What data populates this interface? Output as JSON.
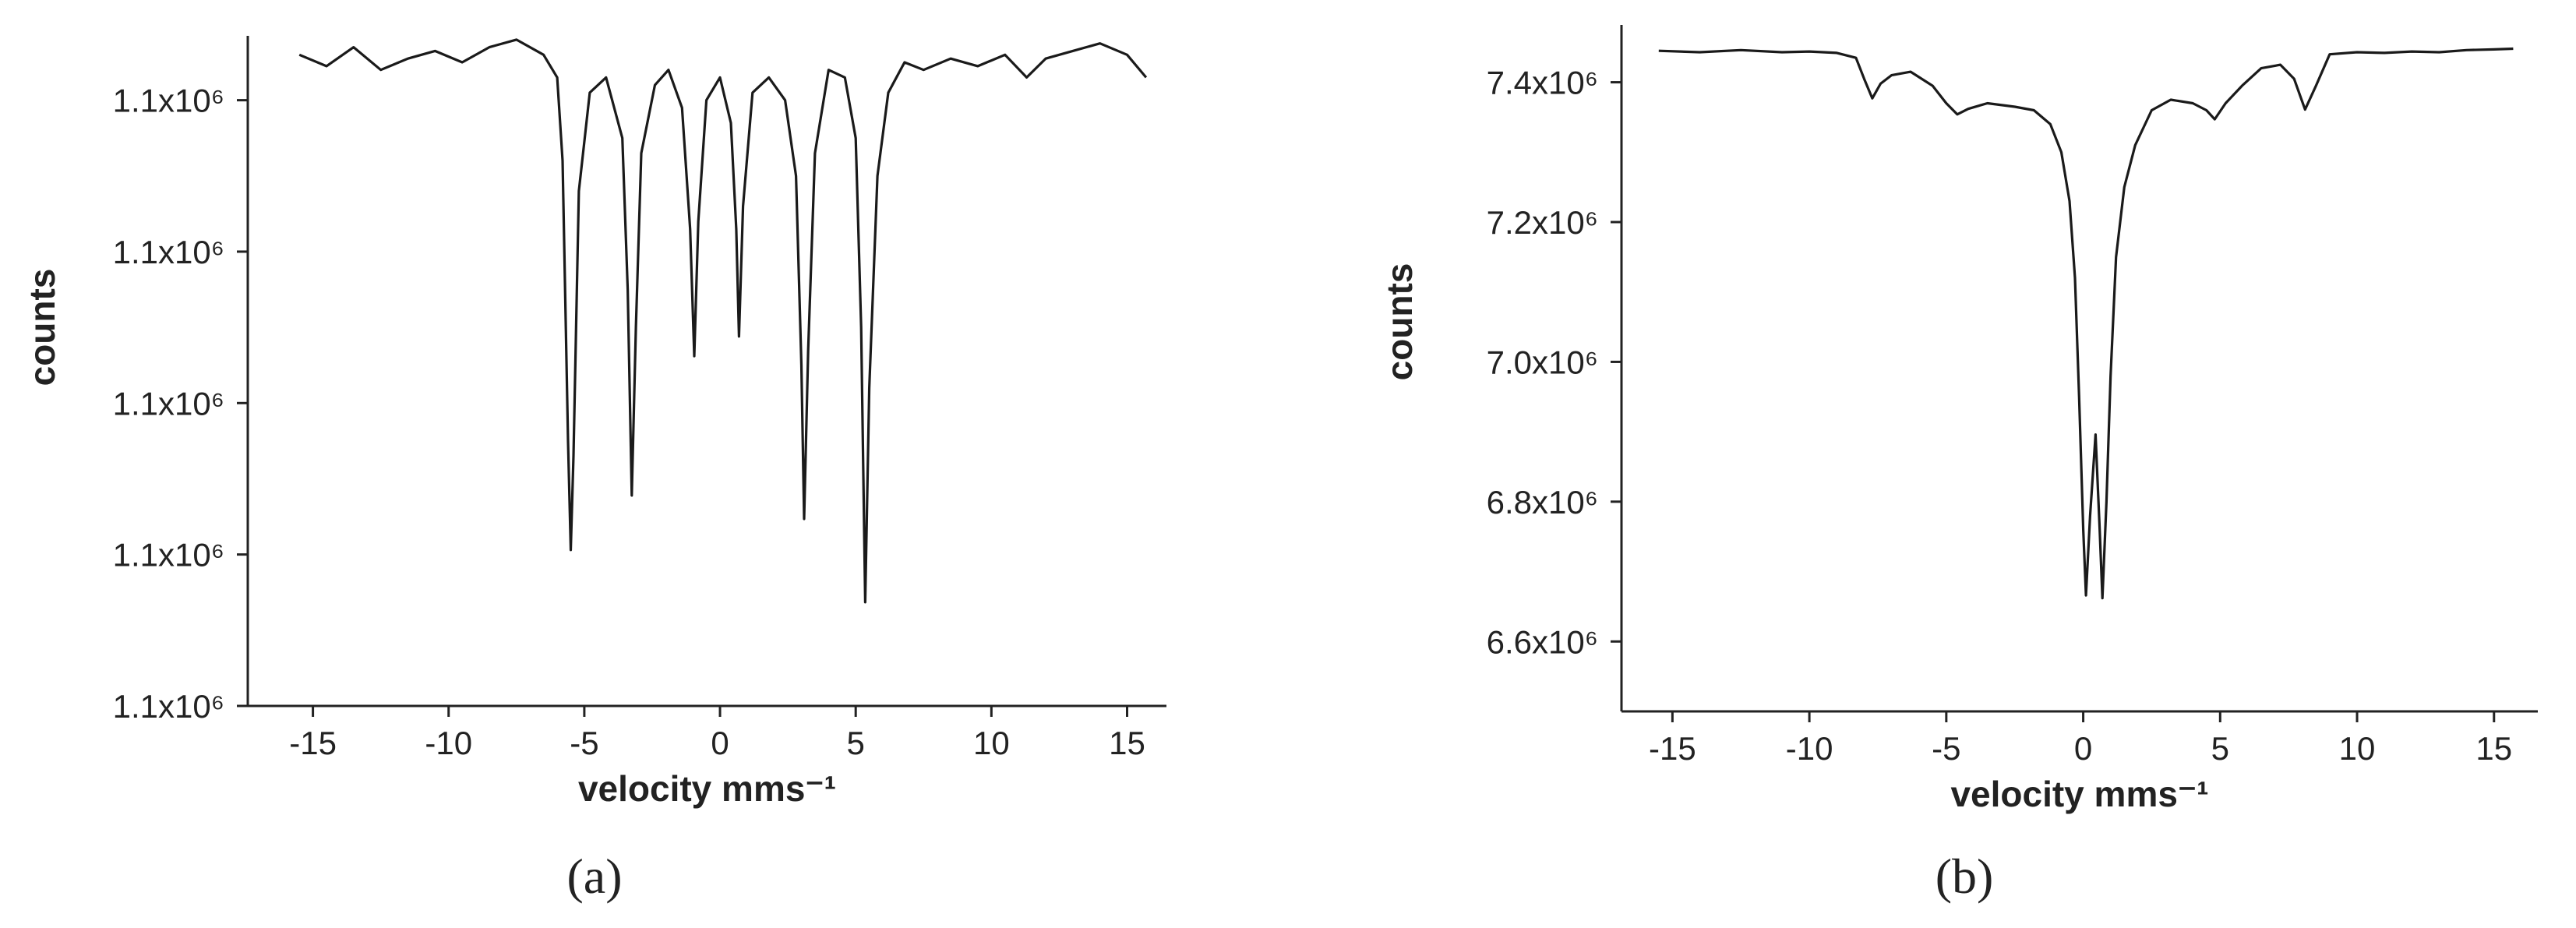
{
  "chart_data": [
    {
      "type": "line",
      "caption": "(a)",
      "xlabel": "velocity mms⁻¹",
      "ylabel": "counts",
      "color": "#1a1a1a",
      "xlim": [
        -17.4,
        16.45
      ],
      "xticks": [
        -15,
        -10,
        -5,
        0,
        5,
        10,
        15
      ],
      "ylim": [
        1096000,
        1104850
      ],
      "yticks": [
        {
          "value": 1096000,
          "label": "1.1x10⁶"
        },
        {
          "value": 1098000,
          "label": "1.1x10⁶"
        },
        {
          "value": 1100000,
          "label": "1.1x10⁶"
        },
        {
          "value": 1102000,
          "label": "1.1x10⁶"
        },
        {
          "value": 1104000,
          "label": "1.1x10⁶"
        }
      ],
      "x": [
        -15.5,
        -14.5,
        -13.5,
        -12.5,
        -11.5,
        -10.5,
        -9.5,
        -8.5,
        -7.5,
        -6.5,
        -6.0,
        -5.8,
        -5.6,
        -5.5,
        -5.4,
        -5.2,
        -4.8,
        -4.2,
        -3.6,
        -3.4,
        -3.25,
        -3.1,
        -2.9,
        -2.4,
        -1.9,
        -1.4,
        -1.1,
        -0.95,
        -0.8,
        -0.5,
        0,
        0.4,
        0.6,
        0.7,
        0.85,
        1.2,
        1.8,
        2.4,
        2.8,
        3.0,
        3.1,
        3.25,
        3.5,
        4.0,
        4.6,
        5.0,
        5.2,
        5.35,
        5.5,
        5.8,
        6.2,
        6.8,
        7.5,
        8.5,
        9.5,
        10.5,
        11.3,
        12,
        13,
        14,
        15,
        15.7
      ],
      "values": [
        1104600,
        1104450,
        1104700,
        1104400,
        1104550,
        1104650,
        1104500,
        1104700,
        1104800,
        1104600,
        1104300,
        1103200,
        1099500,
        1098060,
        1099300,
        1102800,
        1104100,
        1104300,
        1103500,
        1101500,
        1098780,
        1101000,
        1103300,
        1104200,
        1104400,
        1103900,
        1102300,
        1100620,
        1102400,
        1104000,
        1104300,
        1103700,
        1102300,
        1100880,
        1102600,
        1104100,
        1104300,
        1104000,
        1103000,
        1100500,
        1098470,
        1100700,
        1103300,
        1104400,
        1104300,
        1103500,
        1101000,
        1097370,
        1100200,
        1103000,
        1104100,
        1104500,
        1104400,
        1104550,
        1104450,
        1104600,
        1104300,
        1104550,
        1104650,
        1104750,
        1104600,
        1104300
      ]
    },
    {
      "type": "line",
      "caption": "(b)",
      "xlabel": "velocity mms⁻¹",
      "ylabel": "counts",
      "color": "#1a1a1a",
      "xlim": [
        -16.86,
        16.6
      ],
      "xticks": [
        -15,
        -10,
        -5,
        0,
        5,
        10,
        15
      ],
      "ylim": [
        6500000,
        7482000
      ],
      "yticks": [
        {
          "value": 6600000,
          "label": "6.6x10⁶"
        },
        {
          "value": 6800000,
          "label": "6.8x10⁶"
        },
        {
          "value": 7000000,
          "label": "7.0x10⁶"
        },
        {
          "value": 7200000,
          "label": "7.2x10⁶"
        },
        {
          "value": 7400000,
          "label": "7.4x10⁶"
        }
      ],
      "x": [
        -15.5,
        -14,
        -12.5,
        -11,
        -10,
        -9,
        -8.3,
        -8,
        -7.7,
        -7.4,
        -7,
        -6.3,
        -5.5,
        -5,
        -4.6,
        -4.2,
        -3.5,
        -2.5,
        -1.8,
        -1.2,
        -0.8,
        -0.5,
        -0.3,
        -0.15,
        0,
        0.1,
        0.25,
        0.45,
        0.6,
        0.7,
        0.85,
        1.0,
        1.2,
        1.5,
        1.9,
        2.5,
        3.2,
        4,
        4.5,
        4.8,
        5.2,
        5.8,
        6.5,
        7.2,
        7.7,
        8.1,
        8.5,
        9,
        10,
        11,
        12,
        13,
        14,
        15,
        15.7
      ],
      "values": [
        7445000,
        7443000,
        7446000,
        7443000,
        7444000,
        7442000,
        7435000,
        7405000,
        7377000,
        7398000,
        7410000,
        7415000,
        7395000,
        7370000,
        7354000,
        7362000,
        7370000,
        7365000,
        7360000,
        7340000,
        7300000,
        7230000,
        7120000,
        6950000,
        6760000,
        6666000,
        6780000,
        6896000,
        6760000,
        6662000,
        6800000,
        6980000,
        7150000,
        7250000,
        7310000,
        7360000,
        7375000,
        7370000,
        7360000,
        7347000,
        7370000,
        7395000,
        7420000,
        7425000,
        7405000,
        7361000,
        7395000,
        7440000,
        7443000,
        7442000,
        7444000,
        7443000,
        7446000,
        7447000,
        7448000
      ]
    }
  ]
}
